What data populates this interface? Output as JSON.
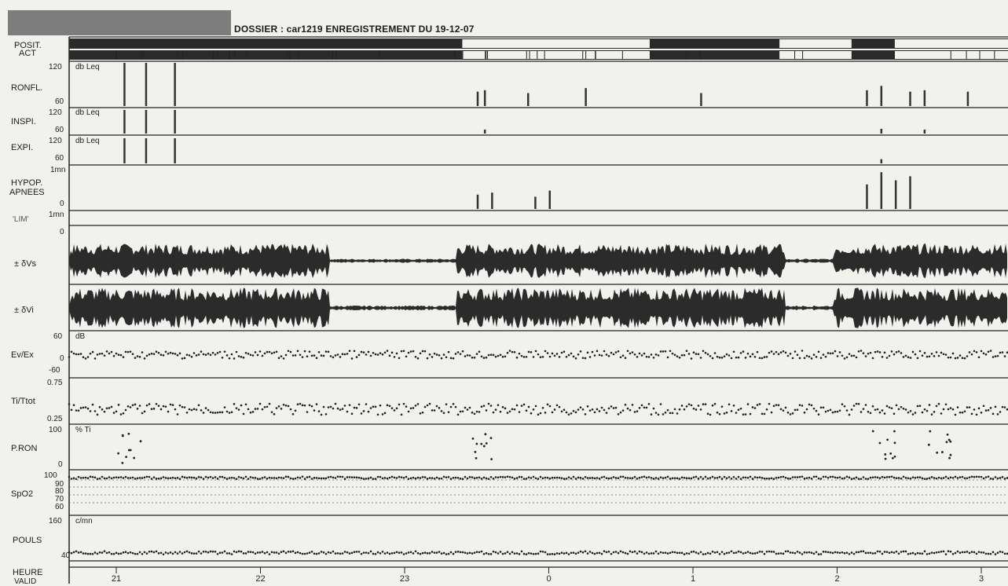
{
  "header": {
    "title": "DOSSIER : car1219 ENREGISTREMENT DU 19-12-07"
  },
  "channels": [
    {
      "key": "posit",
      "label_lines": [
        "POSIT.",
        "ACT"
      ]
    },
    {
      "key": "ronfl",
      "label_lines": [
        "RONFL."
      ],
      "scale_max": "120",
      "scale_min": "60",
      "unit": "db Leq"
    },
    {
      "key": "inspi",
      "label_lines": [
        "INSPI."
      ],
      "scale_max": "120",
      "scale_min": "60",
      "unit": "db Leq"
    },
    {
      "key": "expi",
      "label_lines": [
        "EXPI."
      ],
      "scale_max": "120",
      "scale_min": "60",
      "unit": "db Leq"
    },
    {
      "key": "hypop",
      "label_lines": [
        "HYPOP.",
        "APNEES"
      ],
      "scale_max": "1mn",
      "scale_min": "0"
    },
    {
      "key": "lim",
      "label_lines": [
        "'LIM'"
      ],
      "scale_max": "1mn",
      "scale_min": "0"
    },
    {
      "key": "vs",
      "label_lines": [
        "± δVs"
      ]
    },
    {
      "key": "vi",
      "label_lines": [
        "± δVi"
      ]
    },
    {
      "key": "ev",
      "label_lines": [
        "Ev/Ex"
      ],
      "scale_max": "60",
      "scale_mid": "0",
      "scale_min": "-60",
      "unit": "dB"
    },
    {
      "key": "ti",
      "label_lines": [
        "Ti/Ttot"
      ],
      "scale_max": "0.75",
      "scale_min": "0.25"
    },
    {
      "key": "pron",
      "label_lines": [
        "P.RON"
      ],
      "scale_max": "100",
      "scale_min": "0",
      "unit": "% Ti"
    },
    {
      "key": "spo2",
      "label_lines": [
        "SpO2"
      ],
      "scale_max": "100",
      "ticks": [
        "90",
        "80",
        "70",
        "60"
      ]
    },
    {
      "key": "pouls",
      "label_lines": [
        "POULS"
      ],
      "scale_max": "160",
      "scale_min": "40",
      "unit": "c/mn"
    },
    {
      "key": "heure",
      "label_lines": [
        "HEURE",
        "VALID"
      ]
    }
  ],
  "chart_data": {
    "type": "line",
    "title": "DOSSIER : car1219 ENREGISTREMENT DU 19-12-07",
    "x_axis": {
      "label": "HEURE",
      "tick_labels": [
        "21",
        "22",
        "23",
        "0",
        "1",
        "2",
        "3"
      ]
    },
    "series": [
      {
        "name": "RONFL.",
        "unit": "db Leq",
        "range": [
          60,
          120
        ],
        "events": [
          {
            "h": 21.05,
            "v": 120
          },
          {
            "h": 21.2,
            "v": 120
          },
          {
            "h": 21.4,
            "v": 120
          },
          {
            "h": 23.5,
            "v": 80
          },
          {
            "h": 23.55,
            "v": 82
          },
          {
            "h": 23.85,
            "v": 78
          },
          {
            "h": 0.25,
            "v": 85
          },
          {
            "h": 1.05,
            "v": 78
          },
          {
            "h": 2.2,
            "v": 82
          },
          {
            "h": 2.3,
            "v": 88
          },
          {
            "h": 2.5,
            "v": 80
          },
          {
            "h": 2.6,
            "v": 82
          },
          {
            "h": 2.9,
            "v": 80
          }
        ]
      },
      {
        "name": "INSPI.",
        "unit": "db Leq",
        "range": [
          60,
          120
        ],
        "events": [
          {
            "h": 21.05,
            "v": 120
          },
          {
            "h": 21.2,
            "v": 120
          },
          {
            "h": 21.4,
            "v": 120
          },
          {
            "h": 23.55,
            "v": 70
          },
          {
            "h": 2.3,
            "v": 72
          },
          {
            "h": 2.6,
            "v": 70
          }
        ]
      },
      {
        "name": "EXPI.",
        "unit": "db Leq",
        "range": [
          60,
          120
        ],
        "events": [
          {
            "h": 21.05,
            "v": 120
          },
          {
            "h": 21.2,
            "v": 120
          },
          {
            "h": 21.4,
            "v": 120
          },
          {
            "h": 2.3,
            "v": 70
          }
        ]
      },
      {
        "name": "HYPOP. APNEES",
        "unit": "mn",
        "range": [
          0,
          1
        ],
        "events": [
          {
            "h": 23.5,
            "v": 0.35
          },
          {
            "h": 23.6,
            "v": 0.4
          },
          {
            "h": 23.9,
            "v": 0.3
          },
          {
            "h": 0.0,
            "v": 0.45
          },
          {
            "h": 2.2,
            "v": 0.6
          },
          {
            "h": 2.3,
            "v": 0.9
          },
          {
            "h": 2.4,
            "v": 0.7
          },
          {
            "h": 2.5,
            "v": 0.8
          }
        ]
      },
      {
        "name": "Ev/Ex",
        "unit": "dB",
        "range": [
          -60,
          60
        ],
        "mean": 0
      },
      {
        "name": "Ti/Ttot",
        "range": [
          0.25,
          0.75
        ],
        "mean": 0.4
      },
      {
        "name": "P.RON",
        "unit": "% Ti",
        "range": [
          0,
          100
        ]
      },
      {
        "name": "SpO2",
        "range": [
          60,
          100
        ],
        "mean": 95
      },
      {
        "name": "POULS",
        "unit": "c/mn",
        "range": [
          40,
          160
        ],
        "mean": 60
      }
    ]
  }
}
